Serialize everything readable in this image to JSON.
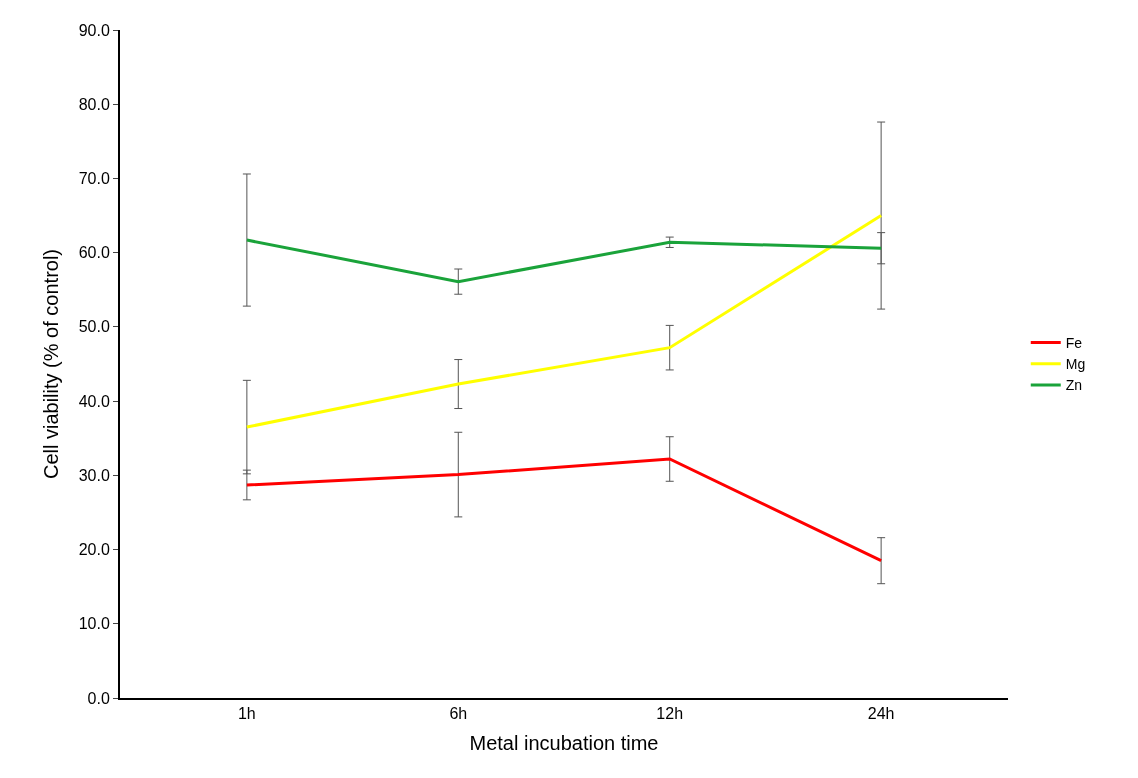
{
  "chart_data": {
    "type": "line",
    "xlabel": "Metal incubation time",
    "ylabel": "Cell viability (% of control)",
    "categories": [
      "1h",
      "6h",
      "12h",
      "24h"
    ],
    "series": [
      {
        "name": "Fe",
        "color": "#ff0000",
        "values": [
          28.7,
          30.1,
          32.2,
          18.5
        ],
        "errors": [
          2.0,
          5.7,
          3.0,
          3.1
        ]
      },
      {
        "name": "Mg",
        "color": "#ffff00",
        "values": [
          36.5,
          42.3,
          47.2,
          65.0
        ],
        "errors": [
          6.3,
          3.3,
          3.0,
          12.6
        ]
      },
      {
        "name": "Zn",
        "color": "#1aa33a",
        "values": [
          61.7,
          56.1,
          61.4,
          60.6
        ],
        "errors": [
          8.9,
          1.7,
          0.7,
          2.1
        ]
      }
    ],
    "ylim": [
      0,
      90
    ],
    "yticks": [
      {
        "value": 0,
        "label": "0.0"
      },
      {
        "value": 10,
        "label": "10.0"
      },
      {
        "value": 20,
        "label": "20.0"
      },
      {
        "value": 30,
        "label": "30.0"
      },
      {
        "value": 40,
        "label": "40.0"
      },
      {
        "value": 50,
        "label": "50.0"
      },
      {
        "value": 60,
        "label": "60.0"
      },
      {
        "value": 70,
        "label": "70.0"
      },
      {
        "value": 80,
        "label": "80.0"
      },
      {
        "value": 90,
        "label": "90.0"
      }
    ],
    "legend": "right",
    "marker": "none",
    "line_style": "solid"
  }
}
